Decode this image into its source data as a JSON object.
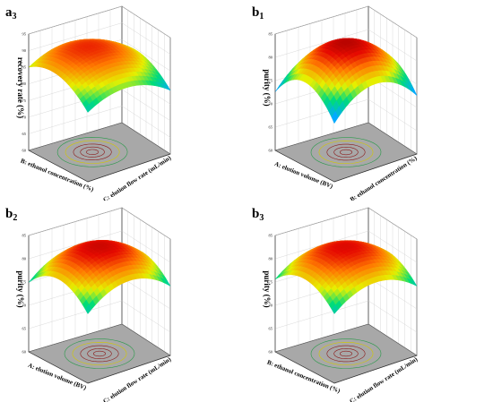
{
  "chart_data": [
    {
      "id": "a3",
      "type": "surface3d",
      "label": "a",
      "label_sub": "3",
      "ylabel": "recovery rate (%)",
      "xlabel": "B: ethanol concentration (%)",
      "zlabel": "C: elution flow rate (mL/min)",
      "zticks": [
        "95",
        "90",
        "85",
        "80",
        "75",
        "70",
        "65",
        "60"
      ],
      "zlim": [
        60,
        95
      ],
      "surface": {
        "peak": 0.9,
        "cx": 0.55,
        "cz": 0.45,
        "tilt": 0.25,
        "curv": 0.9
      }
    },
    {
      "id": "b1",
      "type": "surface3d",
      "label": "b",
      "label_sub": "1",
      "ylabel": "purity (%)",
      "xlabel": "A: elution volume (BV)",
      "zlabel": "B: ethanol concentration (%)",
      "zticks": [
        "85",
        "80",
        "75",
        "70",
        "65",
        "60"
      ],
      "zlim": [
        60,
        85
      ],
      "surface": {
        "peak": 0.95,
        "cx": 0.5,
        "cz": 0.5,
        "tilt": 0.0,
        "curv": 1.6
      }
    },
    {
      "id": "b2",
      "type": "surface3d",
      "label": "b",
      "label_sub": "2",
      "ylabel": "purity (%)",
      "xlabel": "A: elution volume (BV)",
      "zlabel": "C: elution flow rate (mL/min)",
      "zticks": [
        "85",
        "80",
        "75",
        "70",
        "65",
        "60"
      ],
      "zlim": [
        60,
        85
      ],
      "surface": {
        "peak": 0.92,
        "cx": 0.5,
        "cz": 0.5,
        "tilt": 0.0,
        "curv": 1.2
      }
    },
    {
      "id": "b3",
      "type": "surface3d",
      "label": "b",
      "label_sub": "3",
      "ylabel": "purity (%)",
      "xlabel": "B: ethanol concentration (%)",
      "zlabel": "C: elution flow rate (mL/min)",
      "zticks": [
        "85",
        "80",
        "75",
        "70",
        "65",
        "60"
      ],
      "zlim": [
        60,
        85
      ],
      "surface": {
        "peak": 0.92,
        "cx": 0.5,
        "cz": 0.5,
        "tilt": 0.1,
        "curv": 1.1
      }
    }
  ]
}
